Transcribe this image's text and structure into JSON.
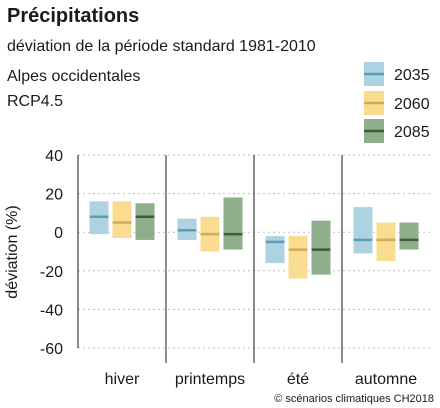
{
  "chart_data": {
    "type": "bar",
    "title": "Précipitations",
    "subtitle": "déviation de la période standard 1981-2010",
    "region": "Alpes occidentales",
    "scenario": "RCP4.5",
    "ylabel": "déviation (%)",
    "xlabel": "",
    "ylim": [
      -60,
      40
    ],
    "yticks": [
      "40",
      "20",
      "0",
      "-20",
      "-40",
      "-60"
    ],
    "grid": true,
    "legend_position": "top-right",
    "categories": [
      "hiver",
      "printemps",
      "été",
      "automne"
    ],
    "series": [
      {
        "name": "2035",
        "fill": "#aed3e0",
        "line": "#5b9db5",
        "ranges": [
          {
            "low": -1,
            "median": 8,
            "high": 16
          },
          {
            "low": -4,
            "median": 1,
            "high": 7
          },
          {
            "low": -16,
            "median": -5,
            "high": -2
          },
          {
            "low": -11,
            "median": -4,
            "high": 13
          }
        ]
      },
      {
        "name": "2060",
        "fill": "#f9dc8f",
        "line": "#d6a85a",
        "ranges": [
          {
            "low": -3,
            "median": 5,
            "high": 16
          },
          {
            "low": -10,
            "median": -1,
            "high": 8
          },
          {
            "low": -24,
            "median": -9,
            "high": -2
          },
          {
            "low": -15,
            "median": -4,
            "high": 5
          }
        ]
      },
      {
        "name": "2085",
        "fill": "#8fae8c",
        "line": "#3f5f3c",
        "ranges": [
          {
            "low": -4,
            "median": 8,
            "high": 15
          },
          {
            "low": -9,
            "median": -1,
            "high": 18
          },
          {
            "low": -22,
            "median": -9,
            "high": 6
          },
          {
            "low": -9,
            "median": -4,
            "high": 5
          }
        ]
      }
    ],
    "copyright": "© scénarios climatiques CH2018"
  }
}
